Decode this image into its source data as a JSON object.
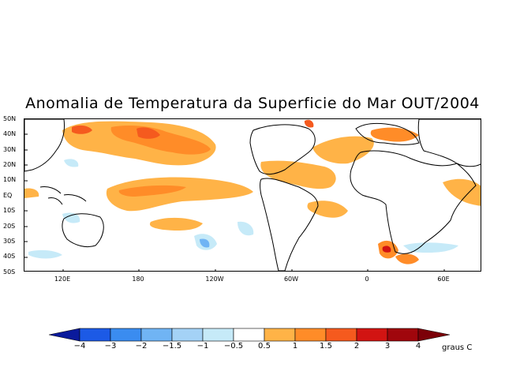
{
  "title": "Anomalia de Temperatura da Superficie do Mar OUT/2004",
  "lat_labels": [
    "50N",
    "40N",
    "30N",
    "20N",
    "10N",
    "EQ",
    "10S",
    "20S",
    "30S",
    "40S",
    "50S"
  ],
  "lon_labels": [
    "120E",
    "180",
    "120W",
    "60W",
    "0",
    "60E"
  ],
  "colorbar": {
    "colors": [
      "#0a1a9c",
      "#1c5ae6",
      "#3a8cf0",
      "#70b4f4",
      "#a4d2f6",
      "#c6eaf8",
      "#ffffff",
      "#ffb347",
      "#ff8c28",
      "#f55a1e",
      "#d21412",
      "#a0060c",
      "#7c0008"
    ],
    "labels": [
      "-4",
      "-3",
      "-2",
      "-1.5",
      "-1",
      "-0.5",
      "0.5",
      "1",
      "1.5",
      "2",
      "3",
      "4"
    ],
    "units": "graus C"
  }
}
